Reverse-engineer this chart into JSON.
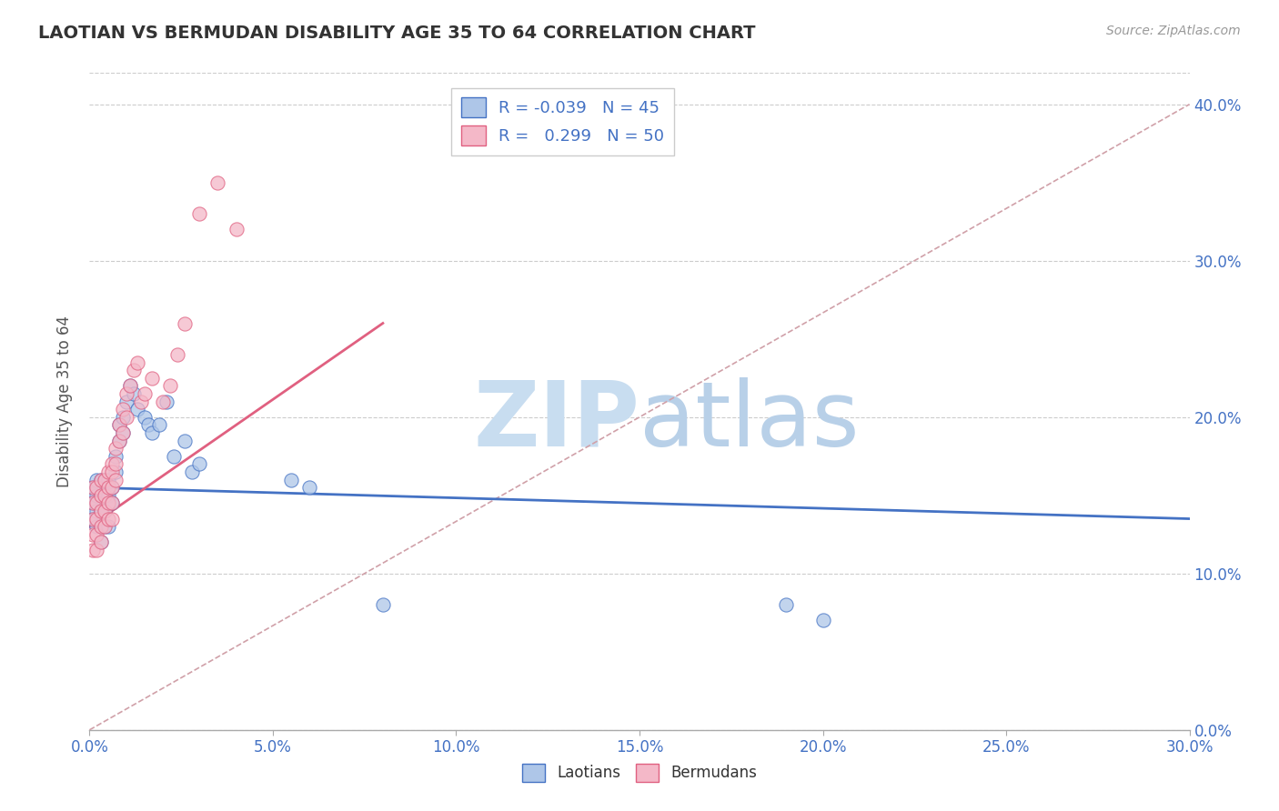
{
  "title": "LAOTIAN VS BERMUDAN DISABILITY AGE 35 TO 64 CORRELATION CHART",
  "source_text": "Source: ZipAtlas.com",
  "xlim": [
    0.0,
    0.3
  ],
  "ylim": [
    0.0,
    0.42
  ],
  "ylabel": "Disability Age 35 to 64",
  "legend_labels": [
    "Laotians",
    "Bermudans"
  ],
  "legend_r_laotian": "-0.039",
  "legend_n_laotian": "45",
  "legend_r_bermudan": "0.299",
  "legend_n_bermudan": "50",
  "color_laotian": "#aec6e8",
  "color_bermudan": "#f4b8c8",
  "trendline_laotian_color": "#4472c4",
  "trendline_bermudan_color": "#e06080",
  "diagonal_line_color": "#d0a0a8",
  "watermark_color": "#c8ddf0",
  "laotian_x": [
    0.001,
    0.001,
    0.001,
    0.002,
    0.002,
    0.002,
    0.002,
    0.003,
    0.003,
    0.003,
    0.003,
    0.003,
    0.004,
    0.004,
    0.004,
    0.004,
    0.005,
    0.005,
    0.005,
    0.006,
    0.006,
    0.007,
    0.007,
    0.008,
    0.008,
    0.009,
    0.009,
    0.01,
    0.011,
    0.012,
    0.013,
    0.015,
    0.016,
    0.017,
    0.019,
    0.021,
    0.023,
    0.026,
    0.028,
    0.03,
    0.055,
    0.06,
    0.08,
    0.19,
    0.2
  ],
  "laotian_y": [
    0.155,
    0.145,
    0.135,
    0.16,
    0.15,
    0.14,
    0.13,
    0.16,
    0.15,
    0.14,
    0.13,
    0.12,
    0.16,
    0.15,
    0.14,
    0.13,
    0.16,
    0.15,
    0.13,
    0.155,
    0.145,
    0.175,
    0.165,
    0.195,
    0.185,
    0.2,
    0.19,
    0.21,
    0.22,
    0.215,
    0.205,
    0.2,
    0.195,
    0.19,
    0.195,
    0.21,
    0.175,
    0.185,
    0.165,
    0.17,
    0.16,
    0.155,
    0.08,
    0.08,
    0.07
  ],
  "bermudan_x": [
    0.001,
    0.001,
    0.001,
    0.001,
    0.001,
    0.002,
    0.002,
    0.002,
    0.002,
    0.002,
    0.003,
    0.003,
    0.003,
    0.003,
    0.003,
    0.004,
    0.004,
    0.004,
    0.004,
    0.005,
    0.005,
    0.005,
    0.005,
    0.006,
    0.006,
    0.006,
    0.006,
    0.006,
    0.007,
    0.007,
    0.007,
    0.008,
    0.008,
    0.009,
    0.009,
    0.01,
    0.01,
    0.011,
    0.012,
    0.013,
    0.014,
    0.015,
    0.017,
    0.02,
    0.022,
    0.024,
    0.026,
    0.03,
    0.035,
    0.04
  ],
  "bermudan_y": [
    0.155,
    0.145,
    0.135,
    0.125,
    0.115,
    0.155,
    0.145,
    0.135,
    0.125,
    0.115,
    0.16,
    0.15,
    0.14,
    0.13,
    0.12,
    0.16,
    0.15,
    0.14,
    0.13,
    0.165,
    0.155,
    0.145,
    0.135,
    0.17,
    0.165,
    0.155,
    0.145,
    0.135,
    0.18,
    0.17,
    0.16,
    0.195,
    0.185,
    0.205,
    0.19,
    0.215,
    0.2,
    0.22,
    0.23,
    0.235,
    0.21,
    0.215,
    0.225,
    0.21,
    0.22,
    0.24,
    0.26,
    0.33,
    0.35,
    0.32
  ],
  "trendline_laotian_x0": 0.0,
  "trendline_laotian_y0": 0.155,
  "trendline_laotian_x1": 0.3,
  "trendline_laotian_y1": 0.135,
  "trendline_bermudan_x0": 0.0,
  "trendline_bermudan_y0": 0.13,
  "trendline_bermudan_x1": 0.08,
  "trendline_bermudan_y1": 0.26
}
